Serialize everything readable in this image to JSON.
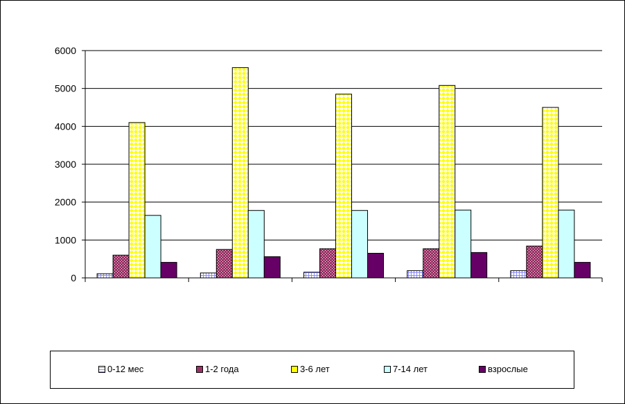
{
  "chart_data": {
    "type": "bar",
    "title": "",
    "xlabel": "",
    "ylabel": "",
    "categories": [
      "",
      "",
      "",
      "",
      ""
    ],
    "ylim": [
      0,
      6000
    ],
    "yticks": [
      0,
      1000,
      2000,
      3000,
      4000,
      5000,
      6000
    ],
    "ytick_labels": [
      "0",
      "1000",
      "2000",
      "3000",
      "4000",
      "5000",
      "6000"
    ],
    "grid": true,
    "legend_position": "bottom",
    "series": [
      {
        "name": "0-12 мес",
        "color": "#ccccff",
        "pattern": "grid",
        "values": [
          110,
          130,
          150,
          190,
          190
        ]
      },
      {
        "name": "1-2 года",
        "color": "#993366",
        "pattern": "dots",
        "values": [
          600,
          750,
          770,
          770,
          840
        ]
      },
      {
        "name": "3-6 лет",
        "color": "#ffff00",
        "pattern": "diamonds",
        "values": [
          4100,
          5550,
          4850,
          5080,
          4500
        ]
      },
      {
        "name": "7-14 лет",
        "color": "#ccffff",
        "pattern": "solid",
        "values": [
          1650,
          1780,
          1780,
          1790,
          1790
        ]
      },
      {
        "name": "взрослые",
        "color": "#660066",
        "pattern": "solid",
        "values": [
          410,
          560,
          650,
          670,
          410
        ]
      }
    ]
  }
}
